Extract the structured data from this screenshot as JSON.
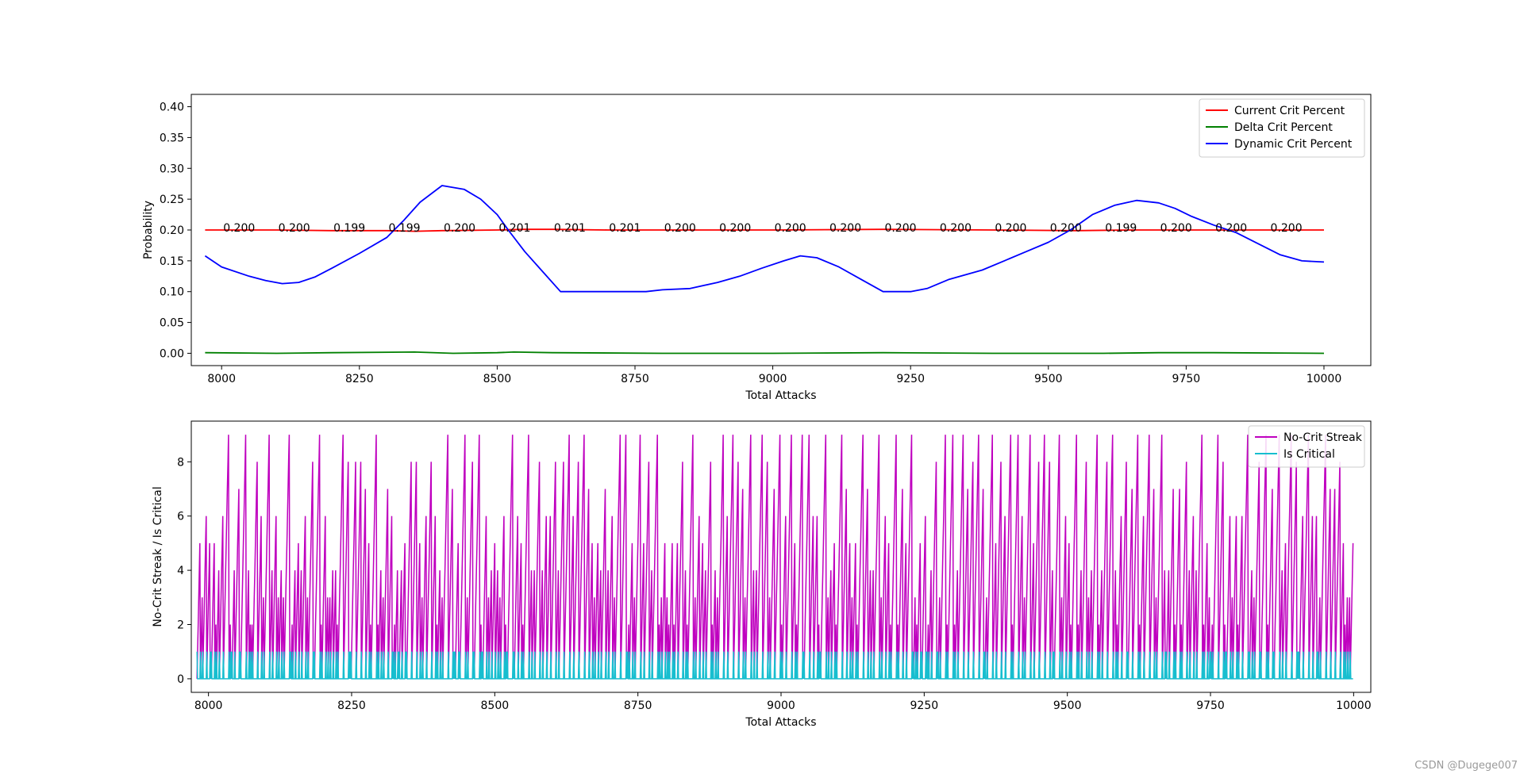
{
  "watermark": "CSDN @Dugege007",
  "chart_data": [
    {
      "type": "line",
      "xlabel": "Total Attacks",
      "ylabel": "Probability",
      "xlim": [
        7945,
        10085
      ],
      "ylim": [
        -0.02,
        0.42
      ],
      "xticks": [
        8000,
        8250,
        8500,
        8750,
        9000,
        9250,
        9500,
        9750,
        10000
      ],
      "yticks": [
        0.0,
        0.05,
        0.1,
        0.15,
        0.2,
        0.25,
        0.3,
        0.35,
        0.4
      ],
      "ytick_labels": [
        "0.00",
        "0.05",
        "0.10",
        "0.15",
        "0.20",
        "0.25",
        "0.30",
        "0.35",
        "0.40"
      ],
      "legend_position": "top-right",
      "series": [
        {
          "name": "Current Crit Percent",
          "color": "#ff0000",
          "x": [
            7970,
            8100,
            8200,
            8300,
            8350,
            8400,
            8500,
            8550,
            8600,
            8700,
            8800,
            9000,
            9200,
            9400,
            9550,
            9650,
            9800,
            10000
          ],
          "y": [
            0.2,
            0.2,
            0.199,
            0.199,
            0.198,
            0.199,
            0.2,
            0.201,
            0.201,
            0.2,
            0.2,
            0.2,
            0.201,
            0.2,
            0.199,
            0.2,
            0.2,
            0.2
          ]
        },
        {
          "name": "Delta Crit Percent",
          "color": "#008000",
          "x": [
            7970,
            8100,
            8200,
            8350,
            8420,
            8500,
            8530,
            8600,
            8800,
            9000,
            9200,
            9400,
            9600,
            9700,
            9800,
            10000
          ],
          "y": [
            0.001,
            0.0,
            0.001,
            0.002,
            0.0,
            0.001,
            0.002,
            0.001,
            0.0,
            0.0,
            0.001,
            0.0,
            0.0,
            0.001,
            0.001,
            0.0
          ]
        },
        {
          "name": "Dynamic Crit Percent",
          "color": "#0000ff",
          "x": [
            7970,
            8000,
            8050,
            8080,
            8110,
            8140,
            8170,
            8200,
            8250,
            8300,
            8330,
            8360,
            8400,
            8440,
            8470,
            8500,
            8520,
            8550,
            8580,
            8615,
            8650,
            8700,
            8770,
            8800,
            8850,
            8900,
            8940,
            8980,
            9020,
            9050,
            9080,
            9120,
            9160,
            9200,
            9250,
            9280,
            9320,
            9380,
            9420,
            9460,
            9500,
            9540,
            9580,
            9620,
            9660,
            9700,
            9730,
            9760,
            9800,
            9840,
            9880,
            9920,
            9960,
            10000
          ],
          "y": [
            0.158,
            0.14,
            0.125,
            0.118,
            0.113,
            0.115,
            0.124,
            0.138,
            0.162,
            0.188,
            0.215,
            0.245,
            0.272,
            0.266,
            0.25,
            0.225,
            0.2,
            0.165,
            0.135,
            0.1,
            0.1,
            0.1,
            0.1,
            0.103,
            0.105,
            0.115,
            0.125,
            0.138,
            0.15,
            0.158,
            0.155,
            0.14,
            0.12,
            0.1,
            0.1,
            0.105,
            0.12,
            0.135,
            0.15,
            0.165,
            0.18,
            0.2,
            0.225,
            0.24,
            0.248,
            0.244,
            0.235,
            0.222,
            0.208,
            0.196,
            0.178,
            0.16,
            0.15,
            0.148
          ]
        }
      ],
      "annotations": {
        "x": [
          8000,
          8100,
          8200,
          8300,
          8400,
          8500,
          8600,
          8700,
          8800,
          8900,
          9000,
          9100,
          9200,
          9300,
          9400,
          9500,
          9600,
          9700,
          9800,
          9900
        ],
        "labels": [
          "0.200",
          "0.200",
          "0.199",
          "0.199",
          "0.200",
          "0.201",
          "0.201",
          "0.201",
          "0.200",
          "0.200",
          "0.200",
          "0.200",
          "0.200",
          "0.200",
          "0.200",
          "0.200",
          "0.199",
          "0.200",
          "0.200",
          "0.200"
        ]
      }
    },
    {
      "type": "line",
      "xlabel": "Total Attacks",
      "ylabel": "No-Crit Streak / Is Critical",
      "xlim": [
        7970,
        10030
      ],
      "ylim": [
        -0.5,
        9.5
      ],
      "xticks": [
        8000,
        8250,
        8500,
        8750,
        9000,
        9250,
        9500,
        9750,
        10000
      ],
      "yticks": [
        0,
        2,
        4,
        6,
        8
      ],
      "legend_position": "top-right",
      "series": [
        {
          "name": "No-Crit Streak",
          "color": "#bf00bf",
          "x_start": 7980,
          "x_end": 10000,
          "peaks_sample": [
            9,
            3,
            6,
            5,
            2,
            9,
            2,
            4,
            3,
            9,
            6,
            9,
            2,
            7,
            1,
            9,
            4,
            2,
            9,
            8,
            5,
            3,
            9,
            2,
            6,
            9,
            4,
            3,
            9,
            1,
            9,
            7,
            5,
            2,
            9,
            3,
            8,
            4,
            9,
            2,
            9,
            6,
            3,
            9,
            5,
            2,
            9,
            8,
            4,
            1
          ]
        },
        {
          "name": "Is Critical",
          "color": "#17becf",
          "x_start": 7980,
          "x_end": 10000,
          "values": [
            0,
            1
          ]
        }
      ]
    }
  ]
}
